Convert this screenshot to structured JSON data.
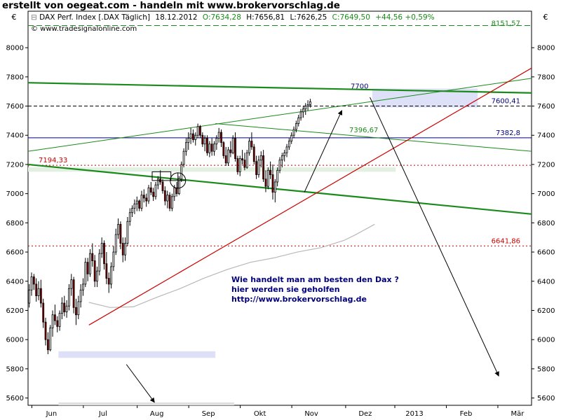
{
  "header": {
    "title": "erstellt von oegeat.com - handeln mit www.brokervorschlag.de"
  },
  "chart_data": {
    "type": "candlestick",
    "instrument": "DAX Perf. Index [.DAX  Täglich]",
    "info_line": {
      "date": "18.12.2012",
      "open": "O:7634,28",
      "high": "H:7656,81",
      "low": "L:7626,25",
      "close": "C:7649,50",
      "change": "+44,56 +0,59%"
    },
    "copyright": "© www.tradesignalonline.com",
    "currency_symbol": "€",
    "ylim": [
      5550,
      8250
    ],
    "yticks": [
      5600,
      5800,
      6000,
      6200,
      6400,
      6600,
      6800,
      7000,
      7200,
      7400,
      7600,
      7800,
      8000
    ],
    "x_month_labels": [
      {
        "label": "Jun",
        "t": 10
      },
      {
        "label": "Jul",
        "t": 32
      },
      {
        "label": "Aug",
        "t": 55
      },
      {
        "label": "Sep",
        "t": 77
      },
      {
        "label": "Okt",
        "t": 99
      },
      {
        "label": "Nov",
        "t": 121
      },
      {
        "label": "Dez",
        "t": 144
      },
      {
        "label": "2013",
        "t": 165
      },
      {
        "label": "Feb",
        "t": 187
      },
      {
        "label": "Mär",
        "t": 209
      }
    ],
    "x_domain": [
      0,
      215
    ],
    "level_labels": [
      {
        "text": "8151,57",
        "value": 8151.57,
        "color": "#1a8a1a"
      },
      {
        "text": "7600,41",
        "value": 7600.41,
        "color": "#000080"
      },
      {
        "text": "7382,8",
        "value": 7382.8,
        "color": "#000080"
      },
      {
        "text": "7194,33",
        "value": 7194.33,
        "color": "#cc0000"
      },
      {
        "text": "6641,86",
        "value": 6641.86,
        "color": "#cc0000"
      },
      {
        "text": "7700",
        "value": 7700,
        "color": "#000080"
      },
      {
        "text": "7396,67",
        "value": 7396.67,
        "color": "#1a8a1a"
      }
    ],
    "annotation_lines": [
      "Wie handelt man am besten  den Dax ?",
      "hier werden sie geholfen",
      "http://www.brokervorschlag.de"
    ],
    "colors": {
      "up_candle": "#ffffff",
      "down_candle": "#8b0000",
      "support_line": "#cc0000",
      "trend_green": "#1a8a1a",
      "moving_average": "#b8b8b8",
      "zone_fill": "#dde0f7"
    },
    "candles": [
      [
        6250,
        6380,
        6220,
        6340
      ],
      [
        6340,
        6460,
        6300,
        6430
      ],
      [
        6430,
        6450,
        6340,
        6380
      ],
      [
        6380,
        6420,
        6260,
        6300
      ],
      [
        6300,
        6400,
        6270,
        6350
      ],
      [
        6350,
        6410,
        6220,
        6250
      ],
      [
        6250,
        6280,
        6080,
        6120
      ],
      [
        6120,
        6150,
        5960,
        6000
      ],
      [
        6000,
        6050,
        5900,
        5930
      ],
      [
        5930,
        6100,
        5920,
        6080
      ],
      [
        6080,
        6200,
        6020,
        6170
      ],
      [
        6170,
        6240,
        6100,
        6130
      ],
      [
        6130,
        6160,
        6050,
        6090
      ],
      [
        6090,
        6200,
        6060,
        6180
      ],
      [
        6180,
        6290,
        6140,
        6250
      ],
      [
        6250,
        6300,
        6160,
        6190
      ],
      [
        6190,
        6270,
        6150,
        6230
      ],
      [
        6230,
        6380,
        6200,
        6350
      ],
      [
        6350,
        6450,
        6300,
        6410
      ],
      [
        6410,
        6430,
        6180,
        6220
      ],
      [
        6220,
        6280,
        6100,
        6170
      ],
      [
        6170,
        6300,
        6140,
        6260
      ],
      [
        6260,
        6380,
        6220,
        6340
      ],
      [
        6340,
        6420,
        6300,
        6380
      ],
      [
        6380,
        6560,
        6360,
        6530
      ],
      [
        6530,
        6560,
        6400,
        6450
      ],
      [
        6450,
        6620,
        6430,
        6590
      ],
      [
        6590,
        6660,
        6500,
        6540
      ],
      [
        6540,
        6580,
        6360,
        6400
      ],
      [
        6400,
        6500,
        6360,
        6470
      ],
      [
        6470,
        6620,
        6440,
        6590
      ],
      [
        6590,
        6700,
        6560,
        6660
      ],
      [
        6660,
        6680,
        6480,
        6520
      ],
      [
        6520,
        6600,
        6380,
        6420
      ],
      [
        6420,
        6460,
        6320,
        6380
      ],
      [
        6380,
        6530,
        6350,
        6500
      ],
      [
        6500,
        6640,
        6470,
        6600
      ],
      [
        6600,
        6760,
        6580,
        6720
      ],
      [
        6720,
        6830,
        6690,
        6790
      ],
      [
        6790,
        6810,
        6620,
        6660
      ],
      [
        6660,
        6700,
        6530,
        6580
      ],
      [
        6580,
        6700,
        6540,
        6660
      ],
      [
        6660,
        6840,
        6640,
        6810
      ],
      [
        6810,
        6900,
        6780,
        6870
      ],
      [
        6870,
        6920,
        6840,
        6900
      ],
      [
        6900,
        6960,
        6860,
        6930
      ],
      [
        6930,
        6980,
        6880,
        6950
      ],
      [
        6950,
        6960,
        6880,
        6900
      ],
      [
        6900,
        7020,
        6880,
        6990
      ],
      [
        6990,
        7030,
        6940,
        6970
      ],
      [
        6970,
        7000,
        6910,
        6950
      ],
      [
        6950,
        7060,
        6930,
        7040
      ],
      [
        7040,
        7080,
        6990,
        7010
      ],
      [
        7010,
        7040,
        6950,
        6980
      ],
      [
        6980,
        7080,
        6960,
        7060
      ],
      [
        7060,
        7120,
        7030,
        7100
      ],
      [
        7100,
        7160,
        7060,
        7080
      ],
      [
        7080,
        7100,
        7000,
        7020
      ],
      [
        7020,
        7050,
        6920,
        6950
      ],
      [
        6950,
        7020,
        6900,
        6990
      ],
      [
        6990,
        7010,
        6880,
        6900
      ],
      [
        6900,
        7000,
        6880,
        6980
      ],
      [
        6980,
        7060,
        6950,
        7040
      ],
      [
        7040,
        7080,
        6980,
        7000
      ],
      [
        7000,
        7120,
        6990,
        7100
      ],
      [
        7100,
        7220,
        7080,
        7200
      ],
      [
        7200,
        7310,
        7180,
        7290
      ],
      [
        7290,
        7380,
        7260,
        7350
      ],
      [
        7350,
        7420,
        7300,
        7380
      ],
      [
        7380,
        7450,
        7340,
        7410
      ],
      [
        7410,
        7440,
        7350,
        7370
      ],
      [
        7370,
        7420,
        7330,
        7400
      ],
      [
        7400,
        7480,
        7380,
        7460
      ],
      [
        7460,
        7470,
        7380,
        7400
      ],
      [
        7400,
        7420,
        7320,
        7340
      ],
      [
        7340,
        7400,
        7290,
        7380
      ],
      [
        7380,
        7400,
        7260,
        7280
      ],
      [
        7280,
        7360,
        7250,
        7340
      ],
      [
        7340,
        7380,
        7260,
        7290
      ],
      [
        7290,
        7360,
        7260,
        7340
      ],
      [
        7340,
        7400,
        7300,
        7380
      ],
      [
        7380,
        7450,
        7350,
        7420
      ],
      [
        7420,
        7440,
        7320,
        7350
      ],
      [
        7350,
        7360,
        7240,
        7260
      ],
      [
        7260,
        7320,
        7190,
        7210
      ],
      [
        7210,
        7320,
        7190,
        7300
      ],
      [
        7300,
        7360,
        7250,
        7280
      ],
      [
        7280,
        7400,
        7270,
        7380
      ],
      [
        7380,
        7420,
        7220,
        7240
      ],
      [
        7240,
        7260,
        7130,
        7150
      ],
      [
        7150,
        7260,
        7120,
        7240
      ],
      [
        7240,
        7300,
        7200,
        7230
      ],
      [
        7230,
        7280,
        7160,
        7180
      ],
      [
        7180,
        7300,
        7170,
        7280
      ],
      [
        7280,
        7380,
        7260,
        7360
      ],
      [
        7360,
        7420,
        7300,
        7320
      ],
      [
        7320,
        7340,
        7200,
        7220
      ],
      [
        7220,
        7260,
        7100,
        7130
      ],
      [
        7130,
        7260,
        7110,
        7230
      ],
      [
        7230,
        7290,
        7180,
        7260
      ],
      [
        7260,
        7300,
        7080,
        7100
      ],
      [
        7100,
        7160,
        7010,
        7050
      ],
      [
        7050,
        7180,
        7030,
        7160
      ],
      [
        7160,
        7220,
        7100,
        7130
      ],
      [
        7130,
        7200,
        6960,
        7010
      ],
      [
        7010,
        7100,
        6940,
        7080
      ],
      [
        7080,
        7180,
        7050,
        7160
      ],
      [
        7160,
        7250,
        7140,
        7230
      ],
      [
        7230,
        7280,
        7180,
        7260
      ],
      [
        7260,
        7300,
        7220,
        7280
      ],
      [
        7280,
        7340,
        7250,
        7320
      ],
      [
        7320,
        7380,
        7300,
        7360
      ],
      [
        7360,
        7420,
        7340,
        7400
      ],
      [
        7400,
        7460,
        7380,
        7440
      ],
      [
        7440,
        7500,
        7420,
        7480
      ],
      [
        7480,
        7540,
        7460,
        7520
      ],
      [
        7520,
        7580,
        7500,
        7560
      ],
      [
        7560,
        7600,
        7520,
        7580
      ],
      [
        7580,
        7620,
        7540,
        7600
      ],
      [
        7600,
        7640,
        7570,
        7610
      ],
      [
        7610,
        7650,
        7590,
        7630
      ]
    ]
  }
}
